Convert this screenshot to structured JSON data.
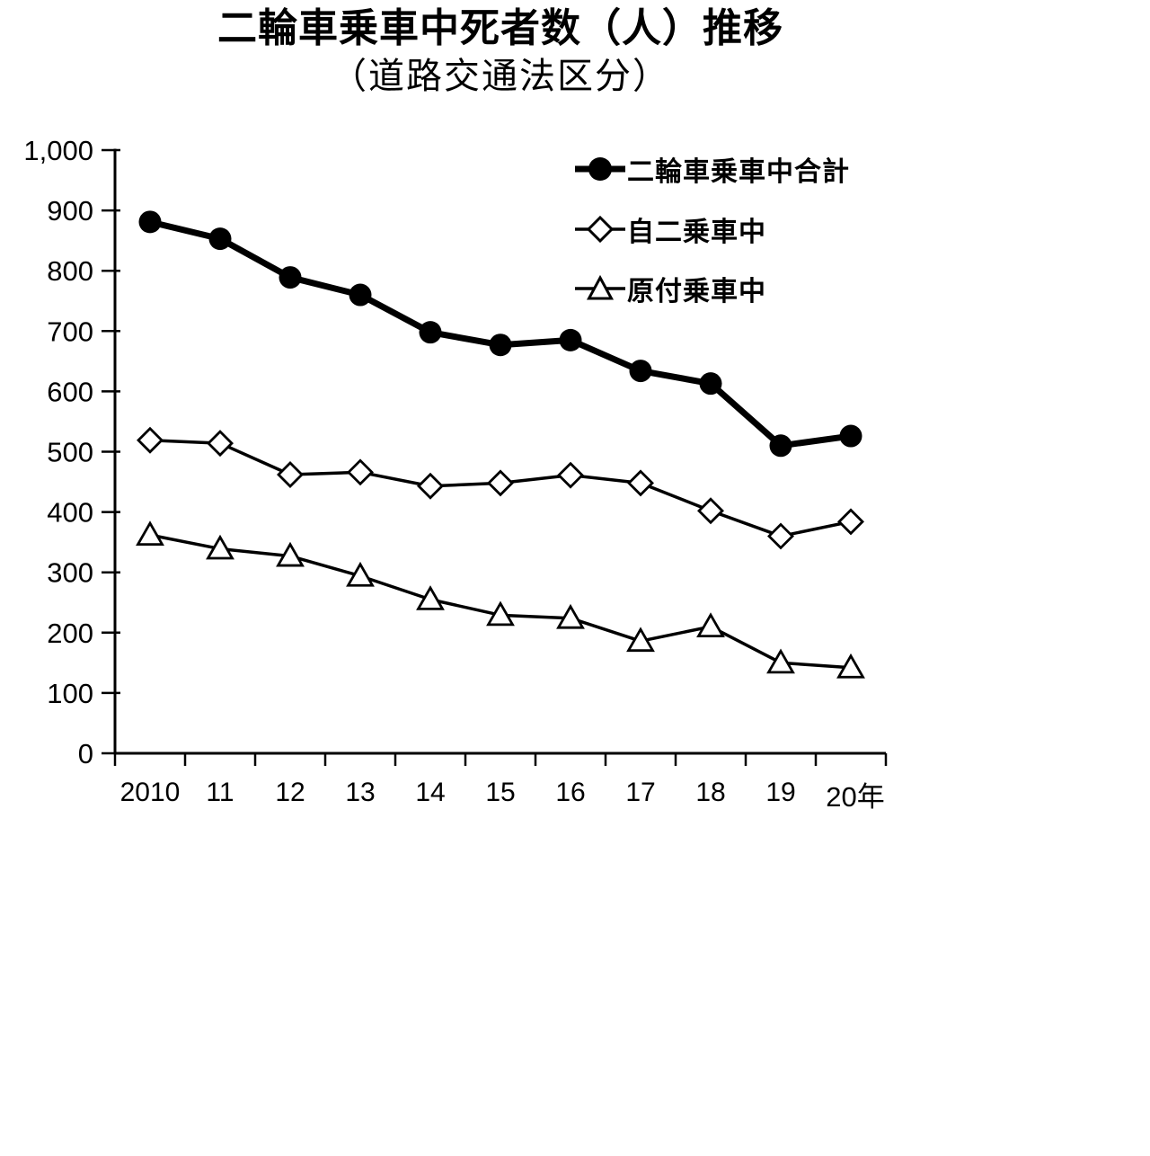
{
  "title": "二輪車乗車中死者数（人）推移",
  "subtitle": "（道路交通法区分）",
  "colors": {
    "foreground": "#000000",
    "background": "#ffffff"
  },
  "legend": {
    "items": [
      {
        "label": "二輪車乗車中合計",
        "marker": "filled-circle"
      },
      {
        "label": "自二乗車中",
        "marker": "open-diamond"
      },
      {
        "label": "原付乗車中",
        "marker": "open-triangle"
      }
    ]
  },
  "chart_data": {
    "type": "line",
    "title": "二輪車乗車中死者数（人）推移",
    "subtitle": "（道路交通法区分）",
    "categories": [
      "2010",
      "11",
      "12",
      "13",
      "14",
      "15",
      "16",
      "17",
      "18",
      "19",
      "20年"
    ],
    "series": [
      {
        "name": "二輪車乗車中合計",
        "key": "total",
        "marker": "filled-circle",
        "values": [
          881,
          853,
          789,
          760,
          698,
          677,
          685,
          634,
          613,
          510,
          526
        ]
      },
      {
        "name": "自二乗車中",
        "key": "motorcycle",
        "marker": "open-diamond",
        "values": [
          519,
          514,
          462,
          466,
          443,
          448,
          461,
          448,
          402,
          360,
          384
        ]
      },
      {
        "name": "原付乗車中",
        "key": "moped",
        "marker": "open-triangle",
        "values": [
          362,
          339,
          327,
          294,
          255,
          229,
          224,
          186,
          210,
          150,
          142
        ]
      }
    ],
    "xlabel": "",
    "ylabel": "",
    "ylim": [
      0,
      1000
    ],
    "ytick_step": 100,
    "ytick_labels": [
      "0",
      "100",
      "200",
      "300",
      "400",
      "500",
      "600",
      "700",
      "800",
      "900",
      "1,000"
    ],
    "grid": false,
    "legend_position": "top-right-inside"
  }
}
